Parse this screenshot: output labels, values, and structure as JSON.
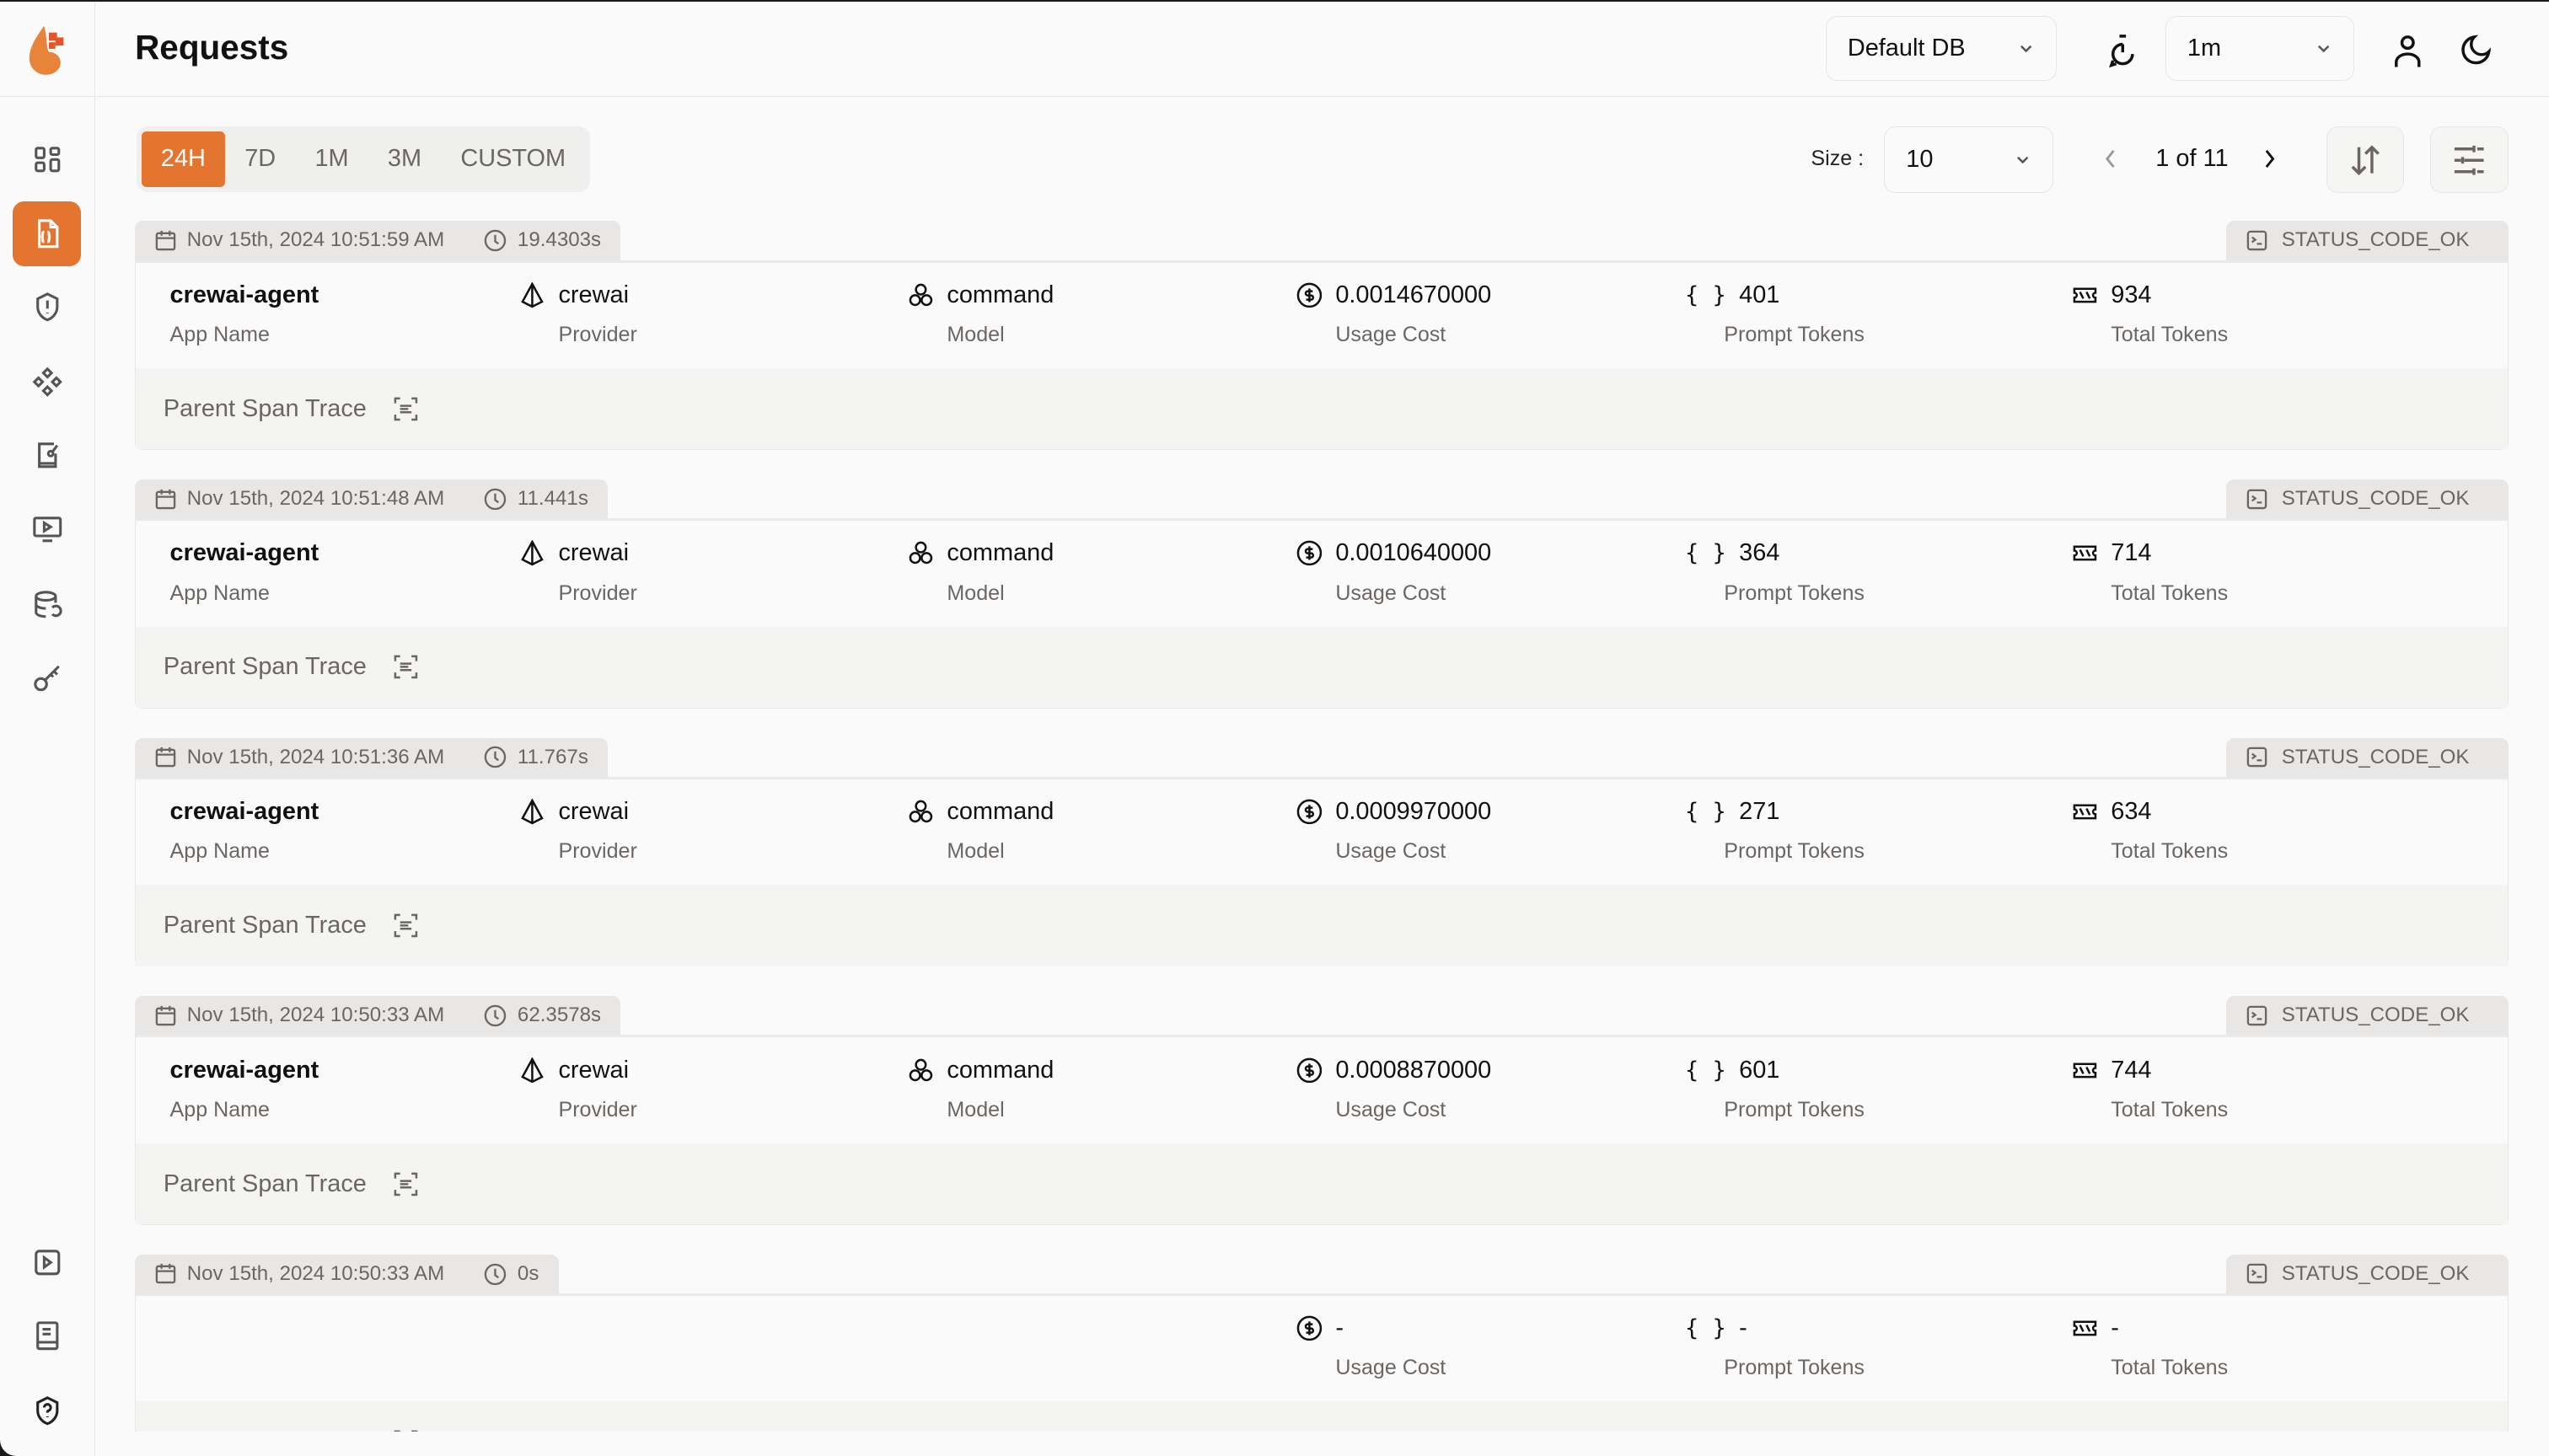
{
  "header": {
    "title": "Requests",
    "db_select": "Default DB",
    "refresh_select": "1m"
  },
  "filters": {
    "tabs": [
      "24H",
      "7D",
      "1M",
      "3M",
      "CUSTOM"
    ],
    "active_tab": "24H",
    "size_label": "Size :",
    "size_value": "10",
    "page_text": "1 of 11"
  },
  "labels": {
    "app_name": "App Name",
    "provider": "Provider",
    "model": "Model",
    "usage_cost": "Usage Cost",
    "prompt_tokens": "Prompt Tokens",
    "total_tokens": "Total Tokens",
    "parent_span": "Parent Span Trace"
  },
  "colors": {
    "accent": "#e37530"
  },
  "requests": [
    {
      "timestamp": "Nov 15th, 2024 10:51:59 AM",
      "duration": "19.4303s",
      "status": "STATUS_CODE_OK",
      "app_name": "crewai-agent",
      "provider": "crewai",
      "model": "command",
      "usage_cost": "0.0014670000",
      "prompt_tokens": "401",
      "total_tokens": "934"
    },
    {
      "timestamp": "Nov 15th, 2024 10:51:48 AM",
      "duration": "11.441s",
      "status": "STATUS_CODE_OK",
      "app_name": "crewai-agent",
      "provider": "crewai",
      "model": "command",
      "usage_cost": "0.0010640000",
      "prompt_tokens": "364",
      "total_tokens": "714"
    },
    {
      "timestamp": "Nov 15th, 2024 10:51:36 AM",
      "duration": "11.767s",
      "status": "STATUS_CODE_OK",
      "app_name": "crewai-agent",
      "provider": "crewai",
      "model": "command",
      "usage_cost": "0.0009970000",
      "prompt_tokens": "271",
      "total_tokens": "634"
    },
    {
      "timestamp": "Nov 15th, 2024 10:50:33 AM",
      "duration": "62.3578s",
      "status": "STATUS_CODE_OK",
      "app_name": "crewai-agent",
      "provider": "crewai",
      "model": "command",
      "usage_cost": "0.0008870000",
      "prompt_tokens": "601",
      "total_tokens": "744"
    },
    {
      "timestamp": "Nov 15th, 2024 10:50:33 AM",
      "duration": "0s",
      "status": "STATUS_CODE_OK",
      "usage_cost": "-",
      "prompt_tokens": "-",
      "total_tokens": "-"
    }
  ]
}
